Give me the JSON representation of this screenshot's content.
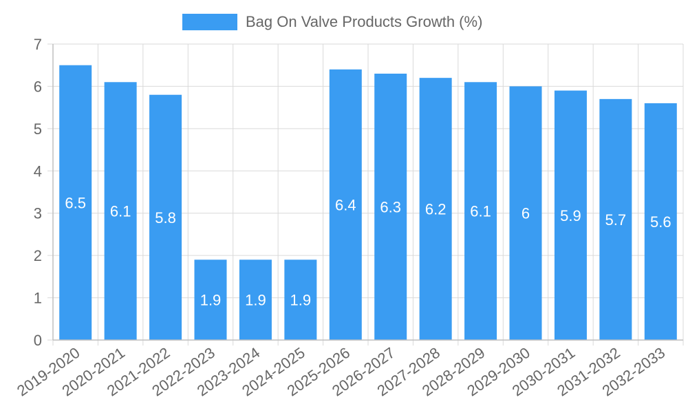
{
  "colors": {
    "bar": "#3a9cf2",
    "grid": "#d9d9d9",
    "axis": "#bfbfbf",
    "text": "#666666",
    "data_label": "#ffffff"
  },
  "chart_data": {
    "type": "bar",
    "categories": [
      "2019-2020",
      "2020-2021",
      "2021-2022",
      "2022-2023",
      "2023-2024",
      "2024-2025",
      "2025-2026",
      "2026-2027",
      "2027-2028",
      "2028-2029",
      "2029-2030",
      "2030-2031",
      "2031-2032",
      "2032-2033"
    ],
    "series": [
      {
        "name": "Bag On Valve Products Growth (%)",
        "values": [
          6.5,
          6.1,
          5.8,
          1.9,
          1.9,
          1.9,
          6.4,
          6.3,
          6.2,
          6.1,
          6,
          5.9,
          5.7,
          5.6
        ]
      }
    ],
    "ylim": [
      0,
      7
    ],
    "yticks": [
      0,
      1,
      2,
      3,
      4,
      5,
      6,
      7
    ],
    "grid": true,
    "legend": "top-center",
    "data_labels": [
      "6.5",
      "6.1",
      "5.8",
      "1.9",
      "1.9",
      "1.9",
      "6.4",
      "6.3",
      "6.2",
      "6.1",
      "6",
      "5.9",
      "5.7",
      "5.6"
    ]
  }
}
